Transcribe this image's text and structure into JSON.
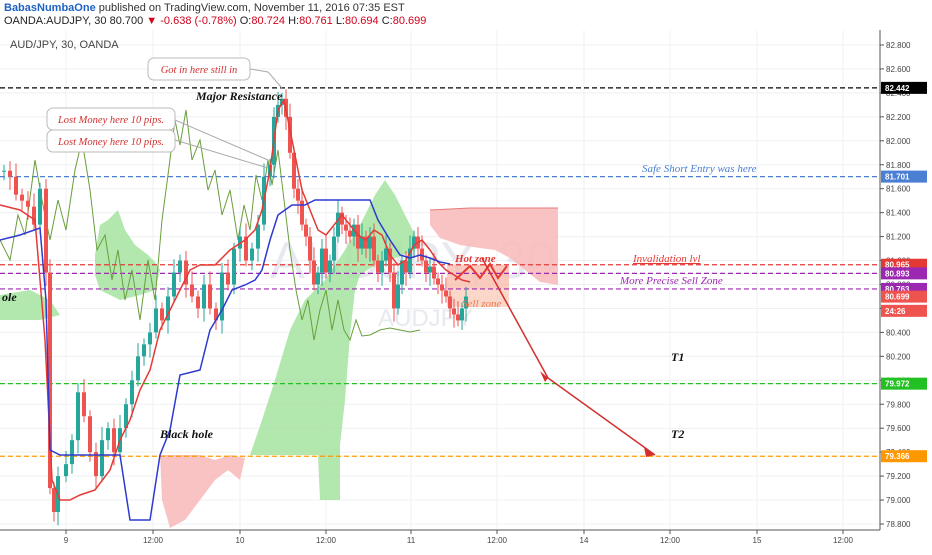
{
  "header": {
    "author": "BabasNumbaOne",
    "published": "published on TradingView.com, November 11, 2016 07:35 EST",
    "symbol_line": "OANDA:AUDJPY, 30",
    "change": "-0.638 (-0.78%)",
    "open_label": "O:",
    "open": "80.724",
    "high_label": "H:",
    "high": "80.761",
    "low_label": "L:",
    "low": "80.694",
    "close_label": "C:",
    "close": "80.699",
    "last": "80.700"
  },
  "chart_title": "AUD/JPY, 30, OANDA",
  "watermark": {
    "big": "AUDJPY, 30",
    "small": "AUDJPY"
  },
  "price_axis": {
    "ticks": [
      "82.800",
      "82.600",
      "82.400",
      "82.200",
      "82.000",
      "81.800",
      "81.600",
      "81.400",
      "81.200",
      "81.000",
      "80.800",
      "80.600",
      "80.400",
      "80.200",
      "80.000",
      "79.800",
      "79.600",
      "79.400",
      "79.200",
      "79.000",
      "78.800"
    ],
    "markers": [
      {
        "label": "82.442",
        "price": 82.442,
        "bg": "#000000",
        "fg": "#ffffff"
      },
      {
        "label": "81.701",
        "price": 81.701,
        "bg": "#4a7fd4",
        "fg": "#ffffff"
      },
      {
        "label": "80.965",
        "price": 80.965,
        "bg": "#e53935",
        "fg": "#ffffff"
      },
      {
        "label": "80.893",
        "price": 80.893,
        "bg": "#9c27b0",
        "fg": "#ffffff"
      },
      {
        "label": "80.763",
        "price": 80.763,
        "bg": "#9c27b0",
        "fg": "#ffffff"
      },
      {
        "label": "80.699",
        "price": 80.699,
        "bg": "#ef5350",
        "fg": "#ffffff"
      },
      {
        "label": "24:26",
        "price": 80.58,
        "bg": "#ef5350",
        "fg": "#ffffff"
      },
      {
        "label": "79.972",
        "price": 79.972,
        "bg": "#22c022",
        "fg": "#ffffff"
      },
      {
        "label": "79.366",
        "price": 79.366,
        "bg": "#ff9800",
        "fg": "#ffffff"
      }
    ]
  },
  "time_axis": [
    "9",
    "12:00",
    "10",
    "12:00",
    "11",
    "12:00",
    "14",
    "12:00",
    "15",
    "12:00"
  ],
  "levels": [
    {
      "price": 82.442,
      "color": "#000000"
    },
    {
      "price": 81.701,
      "color": "#4a7fd4"
    },
    {
      "price": 80.965,
      "color": "#e53935"
    },
    {
      "price": 80.893,
      "color": "#9c27b0"
    },
    {
      "price": 80.763,
      "color": "#9c27b0"
    },
    {
      "price": 79.972,
      "color": "#22c022"
    },
    {
      "price": 79.366,
      "color": "#ff9800"
    }
  ],
  "annotations": {
    "major_resistance": "Major Resistance",
    "safe_short": "Safe Short Entry was here",
    "invalidation": "Invalidation lvl",
    "precise_sell": "More Precise Sell Zone",
    "hot_zone": "Hot zone",
    "sell_zone": "Sell zone",
    "t1": "T1",
    "t2": "T2",
    "black_hole": "Black hole",
    "hole": "ole",
    "callout_top": "Got in here still in",
    "callout_a": "Lost Money here 10 pips.",
    "callout_b": "Lost Money here 10 pips."
  },
  "colors": {
    "bull": "#26a69a",
    "bear": "#ef5350",
    "kumo_bull": "#a5e3a0",
    "kumo_bear": "#f8bcbc",
    "tenkan": "#e53935",
    "kijun": "#2e3ad0",
    "chikou": "#6a9e3c"
  }
}
